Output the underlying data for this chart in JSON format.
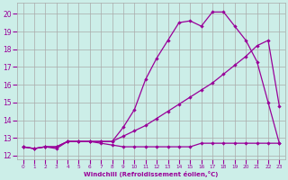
{
  "xlabel": "Windchill (Refroidissement éolien,°C)",
  "bg_color": "#cceee8",
  "grid_color": "#aaaaaa",
  "line_color": "#990099",
  "x_ticks": [
    0,
    1,
    2,
    3,
    4,
    5,
    6,
    7,
    8,
    9,
    10,
    11,
    12,
    13,
    14,
    15,
    16,
    17,
    18,
    19,
    20,
    21,
    22,
    23
  ],
  "y_ticks": [
    12,
    13,
    14,
    15,
    16,
    17,
    18,
    19,
    20
  ],
  "xlim": [
    -0.5,
    23.5
  ],
  "ylim": [
    11.8,
    20.6
  ],
  "series_top_x": [
    0,
    1,
    2,
    3,
    4,
    5,
    6,
    7,
    8,
    9,
    10,
    11,
    12,
    13,
    14,
    15,
    16,
    17,
    18,
    19,
    20,
    21,
    22,
    23
  ],
  "series_top_y": [
    12.5,
    12.4,
    12.5,
    12.5,
    12.8,
    12.8,
    12.8,
    12.8,
    12.8,
    13.6,
    14.6,
    16.3,
    17.5,
    18.5,
    19.5,
    19.6,
    19.3,
    20.1,
    20.1,
    19.3,
    18.5,
    17.3,
    15.0,
    12.7
  ],
  "series_mid_x": [
    0,
    1,
    2,
    3,
    4,
    5,
    6,
    7,
    8,
    9,
    10,
    11,
    12,
    13,
    14,
    15,
    16,
    17,
    18,
    19,
    20,
    21,
    22,
    23
  ],
  "series_mid_y": [
    12.5,
    12.4,
    12.5,
    12.5,
    12.8,
    12.8,
    12.8,
    12.8,
    12.8,
    13.1,
    13.4,
    13.7,
    14.1,
    14.5,
    14.9,
    15.3,
    15.7,
    16.1,
    16.6,
    17.1,
    17.6,
    18.2,
    18.5,
    14.8
  ],
  "series_bot_x": [
    0,
    1,
    2,
    3,
    4,
    5,
    6,
    7,
    8,
    9,
    10,
    11,
    12,
    13,
    14,
    15,
    16,
    17,
    18,
    19,
    20,
    21,
    22,
    23
  ],
  "series_bot_y": [
    12.5,
    12.4,
    12.5,
    12.4,
    12.8,
    12.8,
    12.8,
    12.7,
    12.6,
    12.5,
    12.5,
    12.5,
    12.5,
    12.5,
    12.5,
    12.5,
    12.7,
    12.7,
    12.7,
    12.7,
    12.7,
    12.7,
    12.7,
    12.7
  ]
}
